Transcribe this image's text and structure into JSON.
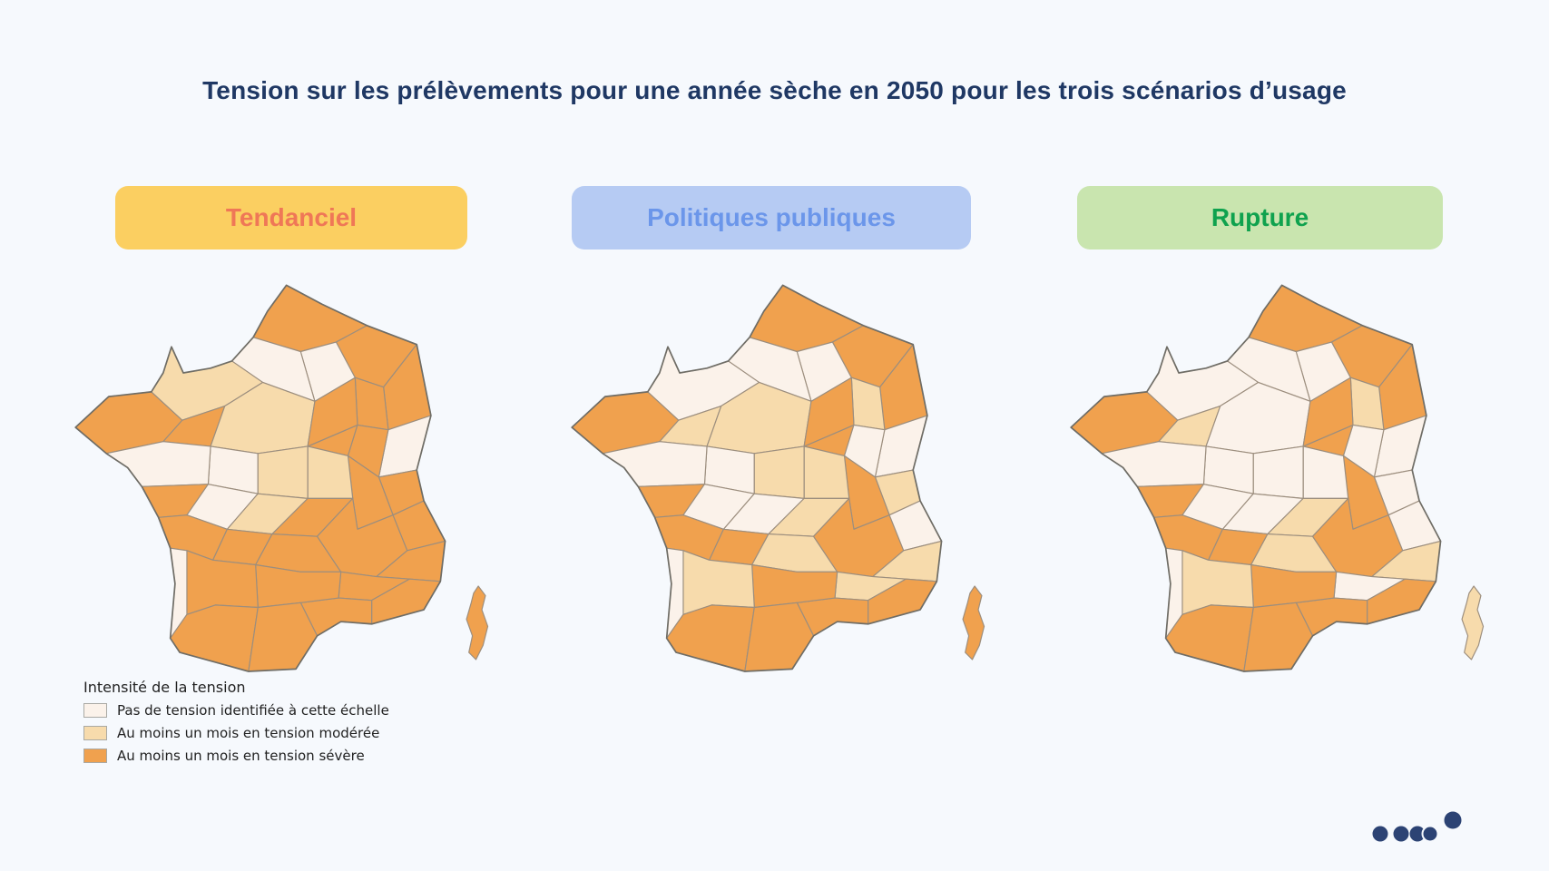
{
  "page": {
    "background": "#F6F9FD"
  },
  "title": {
    "text": "Tension sur les prélèvements pour une année sèche en 2050 pour les trois scénarios d’usage",
    "color": "#1F3864"
  },
  "scenarios": [
    {
      "key": "tendanciel",
      "label": "Tendanciel",
      "pill_bg": "#FBCF61",
      "pill_text_color": "#EF7757"
    },
    {
      "key": "politiques",
      "label": "Politiques publiques",
      "pill_bg": "#B6CBF3",
      "pill_text_color": "#6B96EA"
    },
    {
      "key": "rupture",
      "label": "Rupture",
      "pill_bg": "#C9E5AF",
      "pill_text_color": "#0FA24E"
    }
  ],
  "legend": {
    "title": "Intensité de la tension",
    "items": [
      {
        "label": "Pas de tension identifiée à cette échelle",
        "color": "#FBF2EA"
      },
      {
        "label": "Au moins un mois en tension modérée",
        "color": "#F7DBAC"
      },
      {
        "label": "Au moins un mois en tension sévère",
        "color": "#F0A14E"
      }
    ]
  },
  "map": {
    "type": "choropleth",
    "subject": "secteurs hydrographiques de France métropolitaine et Corse",
    "border_color": "#9C8E7E",
    "coast_color": "#6F6D66",
    "region_levels": {
      "tendanciel": [
        2,
        2,
        2,
        2,
        0,
        0,
        1,
        2,
        2,
        1,
        2,
        2,
        0,
        2,
        2,
        2,
        1,
        0,
        1,
        0,
        2,
        0,
        1,
        2,
        2,
        2,
        2,
        2,
        2,
        2,
        2,
        2,
        2,
        2,
        2,
        0,
        2,
        2,
        2
      ],
      "politiques": [
        2,
        2,
        2,
        1,
        0,
        0,
        0,
        2,
        1,
        1,
        2,
        2,
        0,
        0,
        1,
        2,
        1,
        0,
        1,
        0,
        2,
        0,
        0,
        2,
        2,
        1,
        1,
        2,
        0,
        1,
        1,
        2,
        2,
        2,
        1,
        0,
        2,
        2,
        2
      ],
      "rupture": [
        2,
        2,
        2,
        1,
        0,
        0,
        0,
        2,
        1,
        0,
        2,
        2,
        0,
        0,
        0,
        2,
        0,
        0,
        0,
        0,
        2,
        0,
        0,
        2,
        2,
        1,
        1,
        2,
        0,
        1,
        0,
        2,
        2,
        2,
        1,
        0,
        2,
        2,
        1
      ]
    }
  },
  "pager": {
    "dot_count": 5,
    "dot_color": "#2C4374"
  }
}
